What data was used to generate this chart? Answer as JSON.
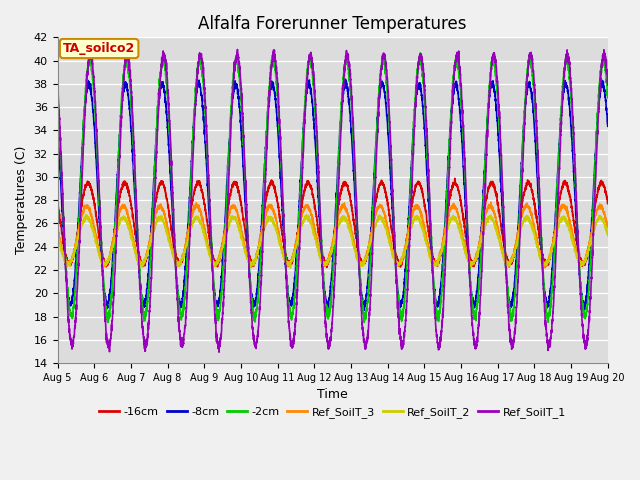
{
  "title": "Alfalfa Forerunner Temperatures",
  "ylabel": "Temperatures (C)",
  "xlabel": "Time",
  "ylim": [
    14,
    42
  ],
  "yticks": [
    14,
    16,
    18,
    20,
    22,
    24,
    26,
    28,
    30,
    32,
    34,
    36,
    38,
    40,
    42
  ],
  "fig_bg_color": "#f0f0f0",
  "plot_bg_color": "#dcdcdc",
  "legend_label": "TA_soilco2",
  "series": [
    {
      "label": "-16cm",
      "color": "#dd0000"
    },
    {
      "label": "-8cm",
      "color": "#0000cc"
    },
    {
      "label": "-2cm",
      "color": "#00cc00"
    },
    {
      "label": "Ref_SoilT_3",
      "color": "#ff8800"
    },
    {
      "label": "Ref_SoilT_2",
      "color": "#cccc00"
    },
    {
      "label": "Ref_SoilT_1",
      "color": "#9900bb"
    }
  ],
  "n_days": 15,
  "start_day": 5,
  "points_per_day": 288
}
